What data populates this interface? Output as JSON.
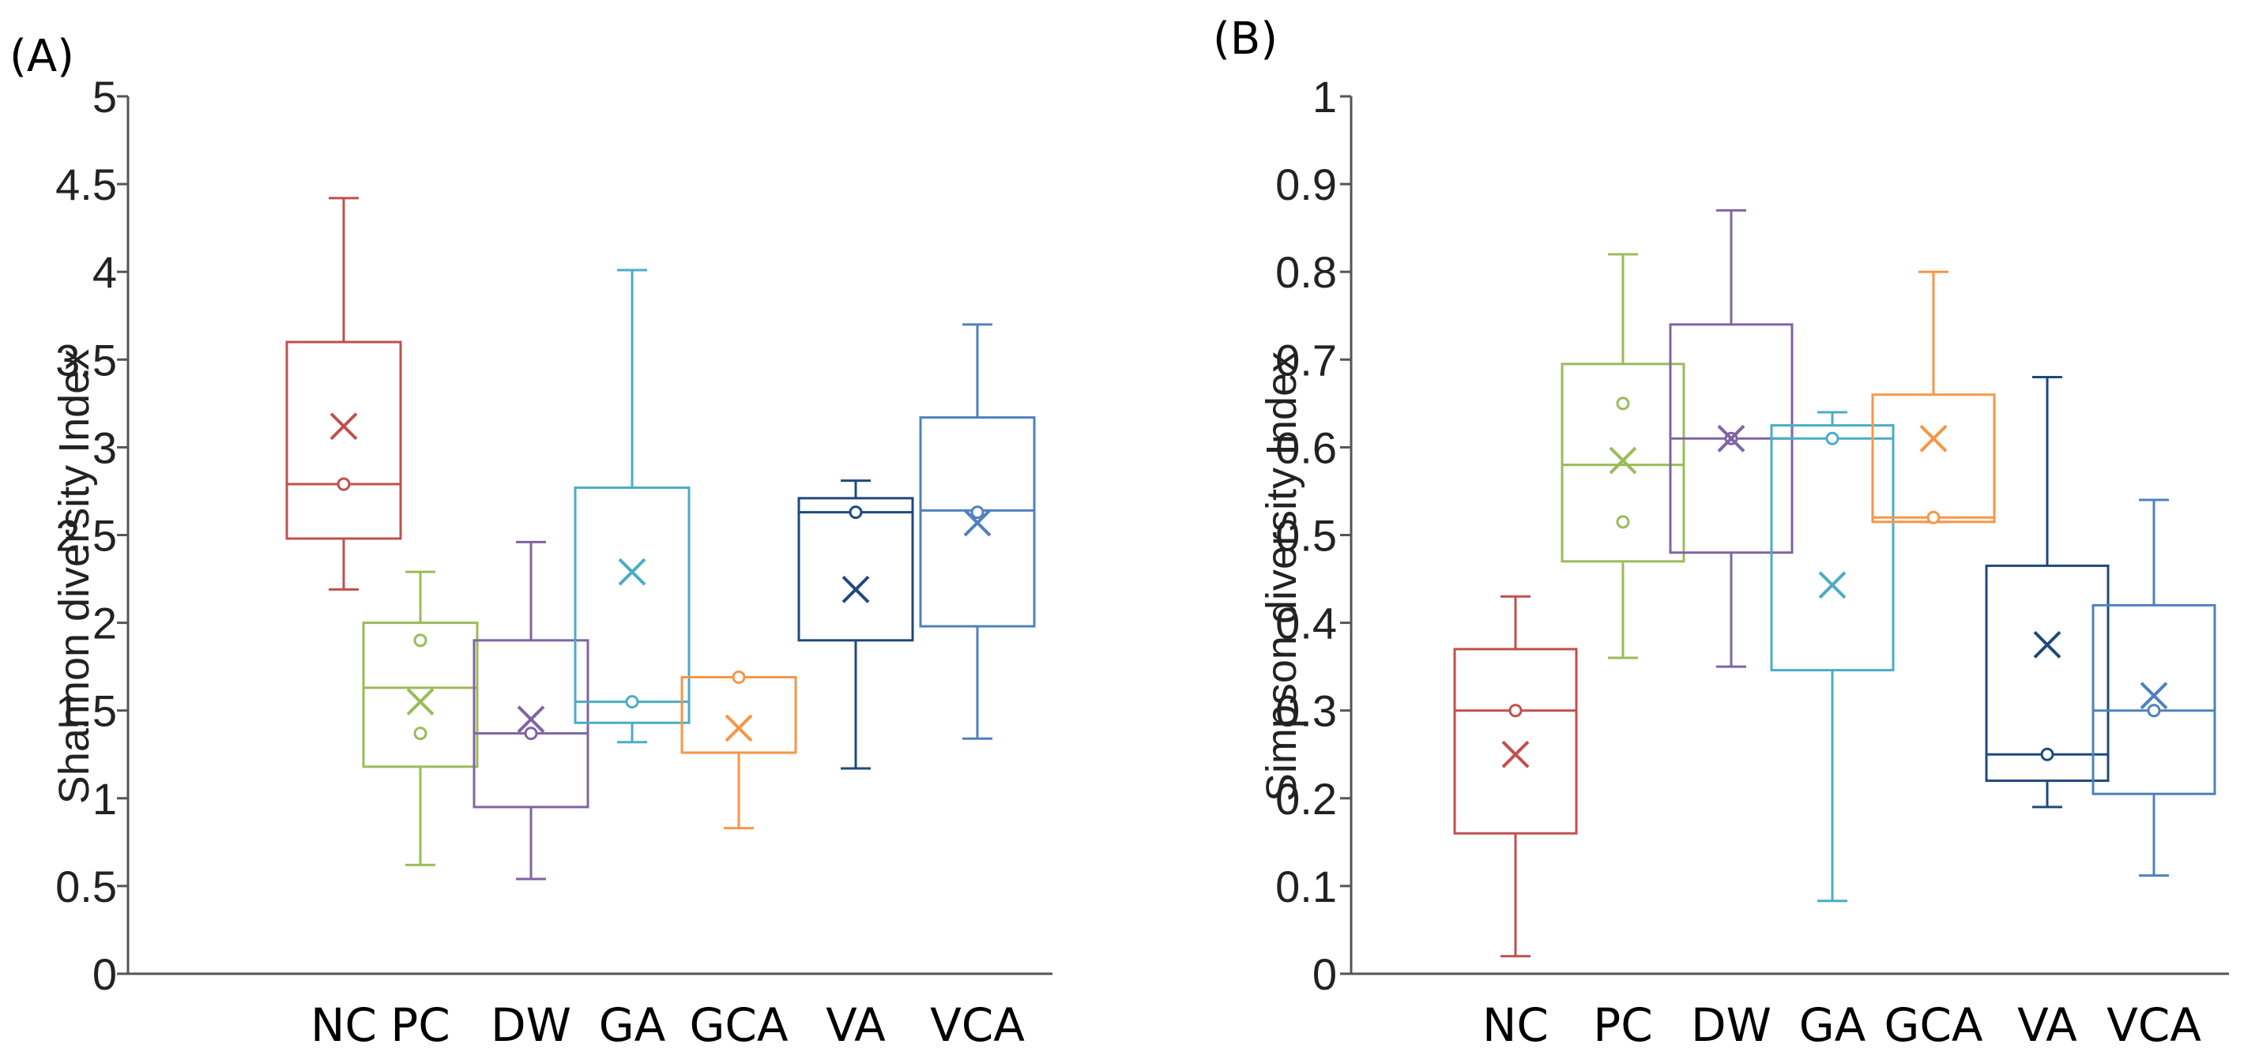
{
  "chart_data": [
    {
      "type": "box",
      "panel_label": "(A)",
      "title": "",
      "xlabel": "",
      "ylabel": "Shannon  diversity Index",
      "ylim": [
        0,
        5
      ],
      "yticks": [
        0,
        0.5,
        1,
        1.5,
        2,
        2.5,
        3,
        3.5,
        4,
        4.5,
        5
      ],
      "ytick_labels": [
        "0",
        "0.5",
        "1",
        "1.5",
        "2",
        "2.5",
        "3",
        "3.5",
        "4",
        "4.5",
        "5"
      ],
      "categories": [
        "NC",
        "PC",
        "DW",
        "GA",
        "GCA",
        "VA",
        "VCA"
      ],
      "boxes": [
        {
          "name": "NC",
          "color": "#c0504d",
          "min": 2.19,
          "q1": 2.48,
          "median": 2.79,
          "q3": 3.6,
          "max": 4.42,
          "mean": 3.12,
          "points": [
            2.79
          ]
        },
        {
          "name": "PC",
          "color": "#9bbb59",
          "min": 0.62,
          "q1": 1.18,
          "median": 1.63,
          "q3": 2.0,
          "max": 2.29,
          "mean": 1.55,
          "points": [
            1.9,
            1.37
          ]
        },
        {
          "name": "DW",
          "color": "#8064a2",
          "min": 0.54,
          "q1": 0.95,
          "median": 1.37,
          "q3": 1.9,
          "max": 2.46,
          "mean": 1.45,
          "points": [
            1.37
          ]
        },
        {
          "name": "GA",
          "color": "#4bacc6",
          "min": 1.32,
          "q1": 1.43,
          "median": 1.55,
          "q3": 2.77,
          "max": 4.01,
          "mean": 2.29,
          "points": [
            1.55
          ]
        },
        {
          "name": "GCA",
          "color": "#f79646",
          "min": 0.83,
          "q1": 1.26,
          "median": 1.69,
          "q3": 1.69,
          "max": 1.69,
          "mean": 1.4,
          "points": [
            1.69
          ]
        },
        {
          "name": "VA",
          "color": "#1f497d",
          "min": 1.17,
          "q1": 1.9,
          "median": 2.63,
          "q3": 2.71,
          "max": 2.81,
          "mean": 2.19,
          "points": [
            2.63
          ]
        },
        {
          "name": "VCA",
          "color": "#4f81bd",
          "min": 1.34,
          "q1": 1.98,
          "median": 2.64,
          "q3": 3.17,
          "max": 3.7,
          "mean": 2.57,
          "points": [
            2.63
          ]
        }
      ]
    },
    {
      "type": "box",
      "panel_label": "(B)",
      "title": "",
      "xlabel": "",
      "ylabel": "Simpson  diversity Index",
      "ylim": [
        0,
        1
      ],
      "yticks": [
        0,
        0.1,
        0.2,
        0.3,
        0.4,
        0.5,
        0.6,
        0.7,
        0.8,
        0.9,
        1
      ],
      "ytick_labels": [
        "0",
        "0.1",
        "0.2",
        "0.3",
        "0.4",
        "0.5",
        "0.6",
        "0.7",
        "0.8",
        "0.9",
        "1"
      ],
      "categories": [
        "NC",
        "PC",
        "DW",
        "GA",
        "GCA",
        "VA",
        "VCA"
      ],
      "boxes": [
        {
          "name": "NC",
          "color": "#c0504d",
          "min": 0.02,
          "q1": 0.16,
          "median": 0.3,
          "q3": 0.37,
          "max": 0.43,
          "mean": 0.25,
          "points": [
            0.3
          ]
        },
        {
          "name": "PC",
          "color": "#9bbb59",
          "min": 0.36,
          "q1": 0.47,
          "median": 0.58,
          "q3": 0.695,
          "max": 0.82,
          "mean": 0.585,
          "points": [
            0.65,
            0.515
          ]
        },
        {
          "name": "DW",
          "color": "#8064a2",
          "min": 0.35,
          "q1": 0.48,
          "median": 0.61,
          "q3": 0.74,
          "max": 0.87,
          "mean": 0.61,
          "points": [
            0.61
          ]
        },
        {
          "name": "GA",
          "color": "#4bacc6",
          "min": 0.083,
          "q1": 0.346,
          "median": 0.61,
          "q3": 0.625,
          "max": 0.64,
          "mean": 0.443,
          "points": [
            0.61
          ]
        },
        {
          "name": "GCA",
          "color": "#f79646",
          "min": 0.515,
          "q1": 0.515,
          "median": 0.52,
          "q3": 0.66,
          "max": 0.8,
          "mean": 0.61,
          "points": [
            0.52
          ]
        },
        {
          "name": "VA",
          "color": "#1f497d",
          "min": 0.19,
          "q1": 0.22,
          "median": 0.25,
          "q3": 0.465,
          "max": 0.68,
          "mean": 0.375,
          "points": [
            0.25
          ]
        },
        {
          "name": "VCA",
          "color": "#4f81bd",
          "min": 0.112,
          "q1": 0.205,
          "median": 0.3,
          "q3": 0.42,
          "max": 0.54,
          "mean": 0.317,
          "points": [
            0.3
          ]
        }
      ]
    }
  ]
}
